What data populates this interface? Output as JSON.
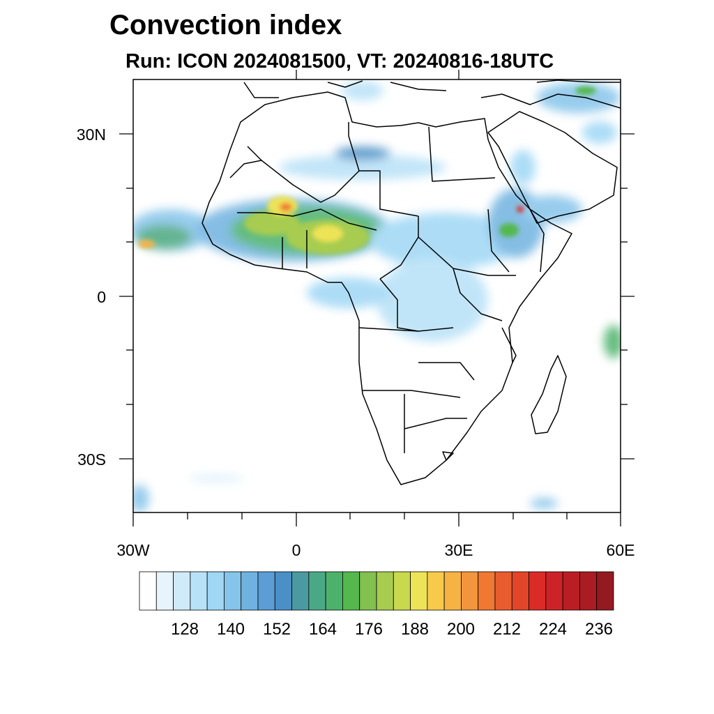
{
  "title": "Convection index",
  "subtitle": "Run: ICON 2024081500,  VT: 20240816-18UTC",
  "map": {
    "region": "Africa",
    "lon_range": [
      -30,
      60
    ],
    "lat_range": [
      -40,
      40
    ],
    "lat_labels": [
      "30N",
      "0",
      "30S"
    ],
    "lon_labels": [
      "30W",
      "0",
      "30E",
      "60E"
    ]
  },
  "colorbar": {
    "tick_labels": [
      "128",
      "140",
      "152",
      "164",
      "176",
      "188",
      "200",
      "212",
      "224",
      "236"
    ],
    "colors": [
      "#ffffff",
      "#e8f4fc",
      "#cfeaf9",
      "#b7e1f7",
      "#9fd7f5",
      "#86c4ea",
      "#6fb2e0",
      "#5b9dd4",
      "#4a8fc6",
      "#4b9aa2",
      "#4ba887",
      "#4cb26b",
      "#54b84d",
      "#82c04f",
      "#a7cc50",
      "#c9d94e",
      "#ede356",
      "#f8ca4c",
      "#f7b244",
      "#f3953c",
      "#ef7833",
      "#e95c2e",
      "#e2452a",
      "#da2b27",
      "#cd2328",
      "#bb1d25",
      "#a81c22",
      "#931a20"
    ]
  }
}
